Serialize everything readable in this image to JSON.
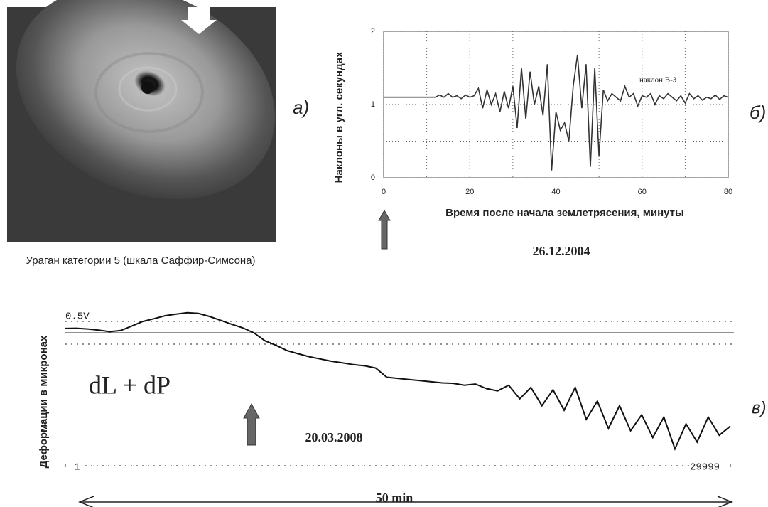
{
  "image": {
    "caption": "Ураган категории 5 (шкала Саффир-Симсона)",
    "label": "а)"
  },
  "chart_data": [
    {
      "type": "line",
      "label": "б)",
      "ylabel": "Наклоны в угл. секундах",
      "xlabel": "Время после начала землетрясения, минуты",
      "annotation": "наклон В-З",
      "date": "26.12.2004",
      "color": "#333333",
      "x": [
        0,
        12,
        13,
        14,
        15,
        16,
        17,
        18,
        19,
        20,
        21,
        22,
        23,
        24,
        25,
        26,
        27,
        28,
        29,
        30,
        31,
        32,
        33,
        34,
        35,
        36,
        37,
        38,
        39,
        40,
        41,
        42,
        43,
        44,
        45,
        46,
        47,
        48,
        49,
        50,
        51,
        52,
        53,
        54,
        55,
        56,
        57,
        58,
        59,
        60,
        61,
        62,
        63,
        64,
        65,
        66,
        67,
        68,
        69,
        70,
        71,
        72,
        73,
        74,
        75,
        76,
        77,
        78,
        79,
        80
      ],
      "values": [
        1.1,
        1.1,
        1.13,
        1.1,
        1.15,
        1.1,
        1.12,
        1.08,
        1.13,
        1.1,
        1.12,
        1.22,
        0.95,
        1.2,
        1.0,
        1.15,
        0.9,
        1.18,
        0.95,
        1.25,
        0.68,
        1.5,
        0.8,
        1.45,
        1.0,
        1.25,
        0.85,
        1.55,
        0.1,
        0.9,
        0.65,
        0.75,
        0.5,
        1.25,
        1.68,
        0.95,
        1.55,
        0.15,
        1.5,
        0.3,
        1.2,
        1.05,
        1.15,
        1.1,
        1.05,
        1.25,
        1.1,
        1.15,
        0.98,
        1.12,
        1.1,
        1.15,
        1.0,
        1.12,
        1.08,
        1.15,
        1.1,
        1.05,
        1.12,
        1.02,
        1.15,
        1.08,
        1.12,
        1.06,
        1.1,
        1.08,
        1.13,
        1.07,
        1.12,
        1.1
      ],
      "xlim": [
        0,
        80
      ],
      "ylim": [
        0,
        2
      ],
      "xticks": [
        0,
        20,
        40,
        60,
        80
      ],
      "yticks": [
        0,
        1,
        2
      ],
      "grid": true,
      "minor_xgrid": [
        10,
        30,
        50,
        70
      ],
      "minor_ygrid": [
        0.5,
        1.5
      ]
    },
    {
      "type": "line",
      "label": "в)",
      "ylabel": "Деформации в микронах",
      "annotation": "dL + dP",
      "date": "20.03.2008",
      "duration": "50 min",
      "color": "#111111",
      "x": [
        1,
        500,
        1000,
        1500,
        2000,
        2500,
        3000,
        3500,
        4000,
        4500,
        5000,
        5500,
        6000,
        6500,
        7000,
        7500,
        8000,
        8500,
        9000,
        9500,
        10000,
        10500,
        11000,
        11500,
        12000,
        12500,
        13000,
        13500,
        14000,
        14500,
        15000,
        15500,
        16000,
        16500,
        17000,
        17500,
        18000,
        18500,
        19000,
        19500,
        20000,
        20500,
        21000,
        21500,
        22000,
        22500,
        23000,
        23500,
        24000,
        24500,
        25000,
        25500,
        26000,
        26500,
        27000,
        27500,
        28000,
        28500,
        29000,
        29500,
        29999
      ],
      "values": [
        0.19,
        0.2,
        0.17,
        0.12,
        0.05,
        0.1,
        0.3,
        0.5,
        0.62,
        0.75,
        0.82,
        0.88,
        0.85,
        0.72,
        0.55,
        0.38,
        0.22,
        0.0,
        -0.35,
        -0.55,
        -0.78,
        -0.92,
        -1.05,
        -1.15,
        -1.25,
        -1.32,
        -1.4,
        -1.45,
        -1.55,
        -1.95,
        -2.0,
        -2.05,
        -2.1,
        -2.15,
        -2.2,
        -2.22,
        -2.3,
        -2.25,
        -2.45,
        -2.55,
        -2.3,
        -2.9,
        -2.4,
        -3.2,
        -2.5,
        -3.4,
        -2.4,
        -3.8,
        -3.0,
        -4.2,
        -3.2,
        -4.3,
        -3.6,
        -4.6,
        -3.7,
        -5.1,
        -4.0,
        -4.8,
        -3.7,
        -4.5,
        -4.1
      ],
      "xlim": [
        1,
        29999
      ],
      "ylim": [
        -5.84,
        1
      ],
      "xticks": [
        1,
        29999
      ],
      "yticks": [
        {
          "value": 0.5,
          "label": "0.5V"
        }
      ],
      "reference_lines": [
        0,
        -0.5
      ]
    }
  ]
}
